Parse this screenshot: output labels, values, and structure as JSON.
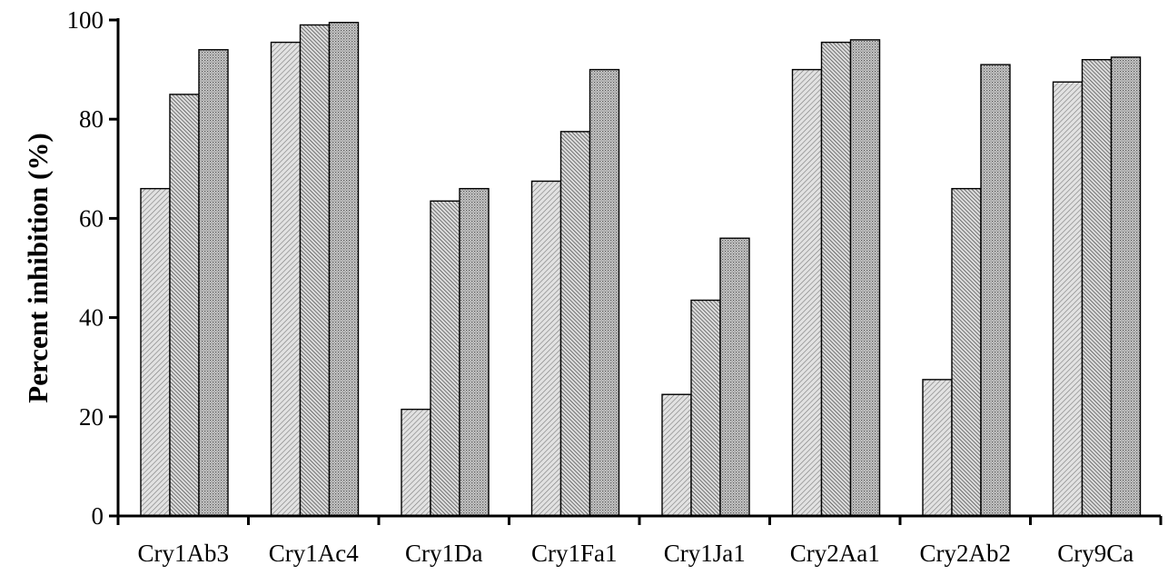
{
  "chart_data": {
    "type": "bar",
    "title": "",
    "xlabel": "",
    "ylabel": "Percent  inhibition (%)",
    "ylim": [
      0,
      100
    ],
    "yticks": [
      0,
      20,
      40,
      60,
      80,
      100
    ],
    "grid": false,
    "legend": "none",
    "categories": [
      "Cry1Ab3",
      "Cry1Ac4",
      "Cry1Da",
      "Cry1Fa1",
      "Cry1Ja1",
      "Cry2Aa1",
      "Cry2Ab2",
      "Cry9Ca"
    ],
    "series": [
      {
        "values": [
          66,
          95.5,
          21.5,
          67.5,
          24.5,
          90,
          27.5,
          87.5
        ]
      },
      {
        "values": [
          85,
          99,
          63.5,
          77.5,
          43.5,
          95.5,
          66,
          92
        ]
      },
      {
        "values": [
          94,
          99.5,
          66,
          90,
          56,
          96,
          91,
          92.5
        ]
      }
    ],
    "patterns": [
      "fine-diagonal-light",
      "diagonal-dense",
      "dotted-grey"
    ]
  }
}
